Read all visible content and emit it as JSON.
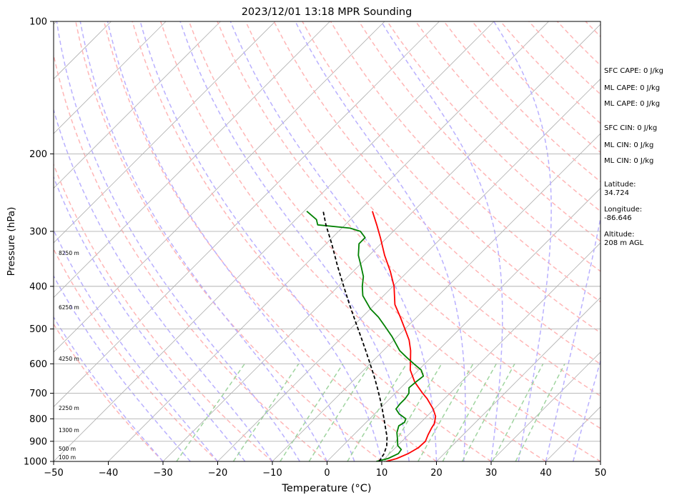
{
  "chart_data": {
    "type": "line",
    "title": "2023/12/01 13:18 MPR Sounding",
    "xlabel": "Temperature (°C)",
    "ylabel": "Pressure (hPa)",
    "xlim": [
      -50,
      50
    ],
    "ylim": [
      1000,
      100
    ],
    "y_scale": "log",
    "skew": true,
    "x_ticks": [
      "−50",
      "−40",
      "−30",
      "−20",
      "−10",
      "0",
      "10",
      "20",
      "30",
      "40",
      "50"
    ],
    "y_ticks": [
      "1000",
      "900",
      "800",
      "700",
      "600",
      "500",
      "400",
      "300",
      "200",
      "100"
    ],
    "grid": true,
    "series": [
      {
        "key": "temperature",
        "color": "#ff0000",
        "style": "solid",
        "points": [
          [
            1000,
            10.8
          ],
          [
            985,
            12.2
          ],
          [
            960,
            13.4
          ],
          [
            930,
            14.2
          ],
          [
            900,
            14.3
          ],
          [
            870,
            13.6
          ],
          [
            840,
            13.0
          ],
          [
            820,
            12.7
          ],
          [
            790,
            11.6
          ],
          [
            760,
            9.8
          ],
          [
            720,
            6.8
          ],
          [
            700,
            5.0
          ],
          [
            660,
            1.5
          ],
          [
            620,
            -1.5
          ],
          [
            590,
            -3.2
          ],
          [
            560,
            -5.0
          ],
          [
            530,
            -7.2
          ],
          [
            500,
            -10.0
          ],
          [
            470,
            -13.0
          ],
          [
            440,
            -16.3
          ],
          [
            400,
            -19.8
          ],
          [
            370,
            -23.2
          ],
          [
            340,
            -27.2
          ],
          [
            310,
            -31.2
          ],
          [
            290,
            -34.2
          ],
          [
            270,
            -37.5
          ]
        ]
      },
      {
        "key": "dewpoint",
        "color": "#008000",
        "style": "solid",
        "points": [
          [
            1000,
            9.0
          ],
          [
            985,
            10.6
          ],
          [
            960,
            11.6
          ],
          [
            940,
            11.4
          ],
          [
            920,
            10.0
          ],
          [
            890,
            8.8
          ],
          [
            860,
            7.5
          ],
          [
            830,
            6.6
          ],
          [
            815,
            7.0
          ],
          [
            800,
            6.6
          ],
          [
            780,
            4.5
          ],
          [
            760,
            3.0
          ],
          [
            740,
            2.8
          ],
          [
            720,
            2.8
          ],
          [
            700,
            2.5
          ],
          [
            680,
            1.5
          ],
          [
            660,
            1.7
          ],
          [
            640,
            2.0
          ],
          [
            620,
            0.5
          ],
          [
            600,
            -2.0
          ],
          [
            580,
            -4.5
          ],
          [
            560,
            -7.0
          ],
          [
            520,
            -11.0
          ],
          [
            490,
            -14.5
          ],
          [
            470,
            -17.0
          ],
          [
            450,
            -20.0
          ],
          [
            420,
            -23.8
          ],
          [
            400,
            -25.6
          ],
          [
            380,
            -27.2
          ],
          [
            360,
            -29.5
          ],
          [
            340,
            -32.0
          ],
          [
            320,
            -34.0
          ],
          [
            310,
            -34.0
          ],
          [
            300,
            -36.0
          ],
          [
            295,
            -38.5
          ],
          [
            290,
            -45.0
          ],
          [
            282,
            -46.2
          ],
          [
            270,
            -49.5
          ]
        ]
      },
      {
        "key": "parcel",
        "color": "#000000",
        "style": "dashed",
        "points": [
          [
            1000,
            9.5
          ],
          [
            960,
            9.0
          ],
          [
            920,
            8.0
          ],
          [
            880,
            6.5
          ],
          [
            840,
            4.6
          ],
          [
            800,
            2.6
          ],
          [
            760,
            0.5
          ],
          [
            720,
            -1.8
          ],
          [
            680,
            -4.3
          ],
          [
            640,
            -7.0
          ],
          [
            600,
            -10.0
          ],
          [
            560,
            -13.2
          ],
          [
            520,
            -16.7
          ],
          [
            480,
            -20.5
          ],
          [
            440,
            -24.6
          ],
          [
            400,
            -29.0
          ],
          [
            360,
            -33.8
          ],
          [
            320,
            -39.0
          ],
          [
            290,
            -43.5
          ],
          [
            270,
            -46.5
          ]
        ]
      }
    ],
    "height_labels": [
      "100 m",
      "500 m",
      "1300 m",
      "2250 m",
      "4250 m",
      "6250 m",
      "8250 m"
    ],
    "annotations": [
      "SFC CAPE: 0 J/kg",
      "ML CAPE: 0 J/kg",
      "ML CAPE: 0 J/kg",
      "SFC CIN: 0 J/kg",
      "ML CIN: 0 J/kg",
      "ML CIN: 0 J/kg",
      "Latitude:",
      "34.724",
      "Longitude:",
      "-86.646",
      "Altitude:",
      "208 m AGL"
    ]
  },
  "colors": {
    "isotherm": "#b0b0b0",
    "dry_adiabat": "#ffb6b6",
    "moist_adiabat": "#b9b0ff",
    "mixing_ratio": "#9fd49f"
  }
}
